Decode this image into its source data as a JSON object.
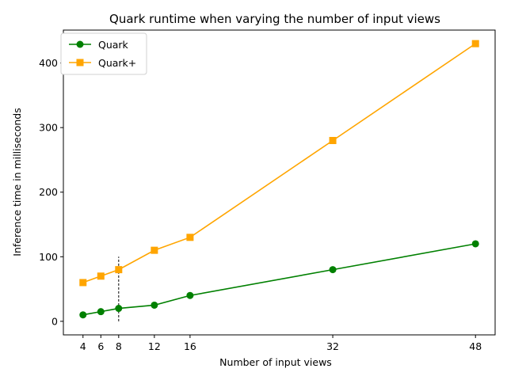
{
  "chart_data": {
    "type": "line",
    "title": "Quark runtime when varying the number of input views",
    "xlabel": "Number of input views",
    "ylabel": "Inference time in milliseconds",
    "x": [
      4,
      6,
      8,
      12,
      16,
      32,
      48
    ],
    "x_ticks": [
      4,
      6,
      8,
      12,
      16,
      32,
      48
    ],
    "y_ticks": [
      0,
      100,
      200,
      300,
      400
    ],
    "xlim": [
      1.8,
      50.2
    ],
    "ylim": [
      -21,
      451
    ],
    "legend_position": "top-left",
    "grid": false,
    "reference_line": {
      "x": 8,
      "y_range": [
        0,
        100
      ],
      "style": "dashed"
    },
    "series": [
      {
        "name": "Quark",
        "values": [
          10,
          15,
          20,
          25,
          40,
          80,
          120
        ],
        "color": "#008000",
        "marker": "circle"
      },
      {
        "name": "Quark+",
        "values": [
          60,
          70,
          80,
          110,
          130,
          280,
          430
        ],
        "color": "#FFA500",
        "marker": "square"
      }
    ]
  }
}
